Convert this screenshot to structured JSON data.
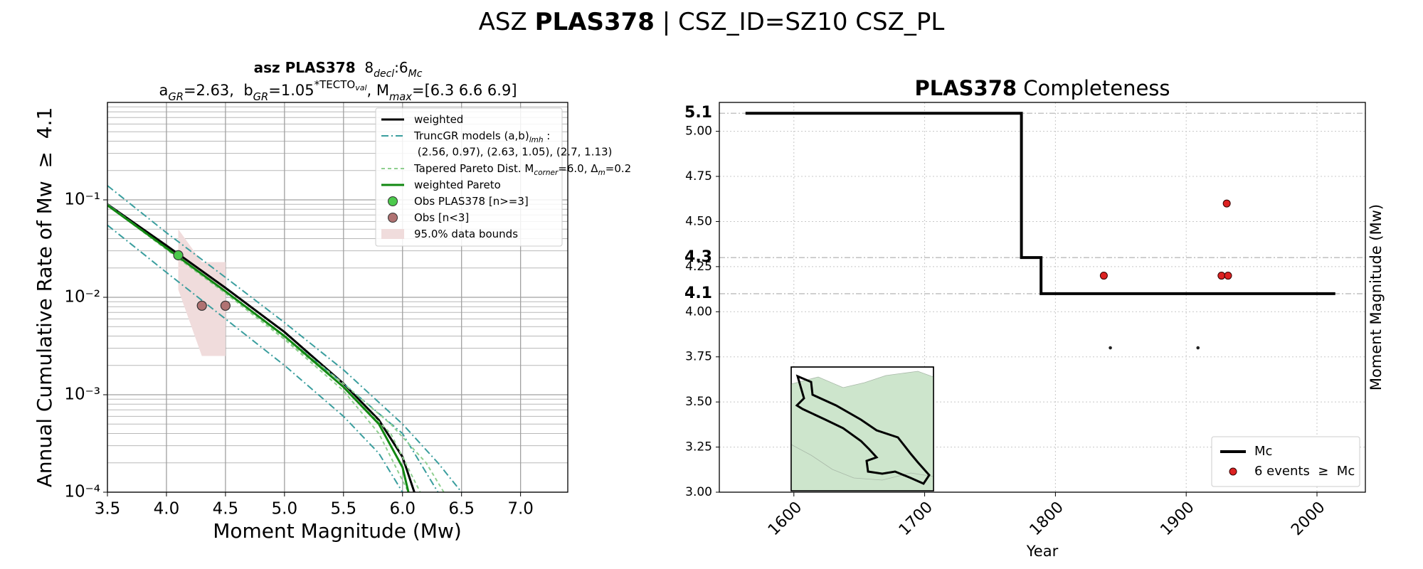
{
  "title": [
    "ASZ ",
    "PLAS378",
    " | CSZ_ID=SZ10 CSZ_PL"
  ],
  "chart_data": [
    {
      "type": "line",
      "title": [
        "asz PLAS378",
        "  8",
        "decl",
        ":6",
        "Mc"
      ],
      "subtitle": [
        "a",
        "GR",
        "=2.63,  b",
        "GR",
        "=1.05",
        "*TECTO",
        "val",
        ", M",
        "max",
        "=[6.3 6.6 6.9]"
      ],
      "x_label": "Moment Magnitude (Mw)",
      "y_label": "Annual Cumulative Rate of Mw  ≥  4.1",
      "xlim": [
        3.5,
        7.4
      ],
      "xticks": [
        3.5,
        {
          "value": 4,
          "label": "4.0"
        },
        4.5,
        {
          "value": 5,
          "label": "5.0"
        },
        5.5,
        {
          "value": 6,
          "label": "6.0"
        },
        6.5,
        {
          "value": 7,
          "label": "7.0"
        }
      ],
      "yscale": "log",
      "ylim": [
        0.0001,
        1
      ],
      "yticks": [
        {
          "value": 0.0001,
          "label": "10⁻⁴"
        },
        {
          "value": 0.001,
          "label": "10⁻³"
        },
        {
          "value": 0.01,
          "label": "10⁻²"
        },
        {
          "value": 0.1,
          "label": "10⁻¹"
        }
      ],
      "yminorticks": [
        0.0002,
        0.0003,
        0.0004,
        0.0005,
        0.0006,
        0.0007,
        0.0008,
        0.0009,
        0.002,
        0.003,
        0.004,
        0.005,
        0.006,
        0.007,
        0.008,
        0.009,
        0.02,
        0.03,
        0.04,
        0.05,
        0.06,
        0.07,
        0.08,
        0.09,
        0.2,
        0.3,
        0.4,
        0.5,
        0.6,
        0.7,
        0.8,
        0.9
      ],
      "grid": true,
      "legend": "upper right",
      "series": [
        {
          "name": [
            "weighted"
          ],
          "kind": "line",
          "style": "solid",
          "color": "#000000",
          "x": [
            3.5,
            4,
            4.5,
            5,
            5.5,
            5.8,
            6,
            6.1
          ],
          "values": [
            0.09,
            0.034,
            0.0125,
            0.0044,
            0.0013,
            0.00055,
            0.00023,
            0.0001
          ]
        },
        {
          "name": [
            "TruncGR models (a,b)",
            "lmh",
            " :"
          ],
          "note": " (2.56, 0.97), (2.63, 1.05), (2.7, 1.13)",
          "kind": "line",
          "style": "dashdot",
          "color": "#3a9e9e",
          "x": [
            3.5,
            4,
            4.5,
            5,
            5.5,
            6,
            6.3,
            6.5
          ],
          "values": [
            0.14,
            0.046,
            0.016,
            0.0055,
            0.0018,
            0.0005,
            0.0002,
            0.0001
          ]
        },
        {
          "kind": "line",
          "style": "dashdot",
          "color": "#3a9e9e",
          "x": [
            3.5,
            4,
            4.5,
            5,
            5.5,
            6,
            6.3
          ],
          "values": [
            0.09,
            0.032,
            0.0115,
            0.004,
            0.0013,
            0.0004,
            0.0001
          ]
        },
        {
          "kind": "line",
          "style": "dashdot",
          "color": "#3a9e9e",
          "x": [
            3.5,
            4,
            4.5,
            5,
            5.5,
            5.8,
            6
          ],
          "values": [
            0.055,
            0.018,
            0.006,
            0.002,
            0.0006,
            0.00025,
            0.0001
          ]
        },
        {
          "name": [
            "Tapered Pareto Dist. M",
            "corner",
            "=6.0, Δ",
            "m",
            "=0.2"
          ],
          "kind": "line",
          "style": "dashed",
          "color": "#8fcf8f",
          "x": [
            3.5,
            4,
            4.5,
            5,
            5.5,
            5.9,
            6.2,
            6.35
          ],
          "values": [
            0.09,
            0.032,
            0.0115,
            0.004,
            0.0013,
            0.0005,
            0.0002,
            0.0001
          ]
        },
        {
          "kind": "line",
          "style": "dashed",
          "color": "#8fcf8f",
          "x": [
            3.5,
            4,
            4.5,
            5,
            5.5,
            5.9,
            6.15
          ],
          "values": [
            0.089,
            0.031,
            0.011,
            0.0038,
            0.0012,
            0.0004,
            0.0001
          ]
        },
        {
          "kind": "line",
          "style": "dashed",
          "color": "#8fcf8f",
          "x": [
            3.5,
            4,
            4.5,
            5,
            5.5,
            5.8,
            6.05
          ],
          "values": [
            0.088,
            0.031,
            0.011,
            0.0037,
            0.0011,
            0.0004,
            0.0001
          ]
        },
        {
          "name": [
            "weighted Pareto"
          ],
          "kind": "line",
          "style": "solid",
          "color": "#118811",
          "x": [
            3.5,
            4,
            4.5,
            5,
            5.5,
            5.8,
            6,
            6.05
          ],
          "values": [
            0.088,
            0.032,
            0.0115,
            0.004,
            0.0012,
            0.0005,
            0.00018,
            0.0001
          ]
        },
        {
          "name": [
            "Obs PLAS378 [n>=3]"
          ],
          "kind": "scatter",
          "color": "#4cc94c",
          "x": [
            4.1
          ],
          "values": [
            0.027
          ]
        },
        {
          "name": [
            "Obs [n<3]"
          ],
          "kind": "scatter",
          "color": "#b07272",
          "x": [
            4.3,
            4.5
          ],
          "values": [
            0.0082,
            0.0082
          ]
        },
        {
          "name": [
            "95.0% data bounds"
          ],
          "kind": "band",
          "color": "#f0dcdc",
          "x": [
            4.1,
            4.3,
            4.5
          ],
          "values": [
            0.05,
            0.023,
            0.023
          ],
          "lower": [
            0.012,
            0.0025,
            0.0025
          ]
        }
      ]
    },
    {
      "type": "step",
      "title": [
        "PLAS378",
        " Completeness"
      ],
      "x_label": "Year",
      "y_label": "Moment Magnitude (Mw)",
      "xlim": [
        1543,
        2037
      ],
      "xticks": [
        1600,
        1700,
        1800,
        1900,
        2000
      ],
      "ylim": [
        3,
        5.16
      ],
      "yticks": [
        {
          "value": 3,
          "label": "3.00"
        },
        3.25,
        {
          "value": 3.5,
          "label": "3.50"
        },
        3.75,
        {
          "value": 4,
          "label": "4.00"
        },
        4.25,
        {
          "value": 4.5,
          "label": "4.50"
        },
        4.75,
        {
          "value": 5,
          "label": "5.00"
        }
      ],
      "mc_ticks": [
        4.1,
        4.3,
        5.1
      ],
      "grid": true,
      "legend": "lower right",
      "series": [
        {
          "name": "Mc",
          "kind": "step",
          "color": "#000000",
          "x": [
            1563,
            1774,
            1774,
            1789,
            1789,
            2014
          ],
          "values": [
            5.1,
            5.1,
            4.3,
            4.3,
            4.1,
            4.1
          ]
        },
        {
          "name": "6 events  ≥  Mc",
          "kind": "scatter",
          "color": "#dd2222",
          "x": [
            1837,
            1927,
            1932,
            1931
          ],
          "values": [
            4.2,
            4.2,
            4.2,
            4.6
          ]
        },
        {
          "kind": "dot",
          "color": "#222222",
          "x": [
            1842,
            1909
          ],
          "values": [
            3.8,
            3.8
          ]
        }
      ]
    }
  ]
}
